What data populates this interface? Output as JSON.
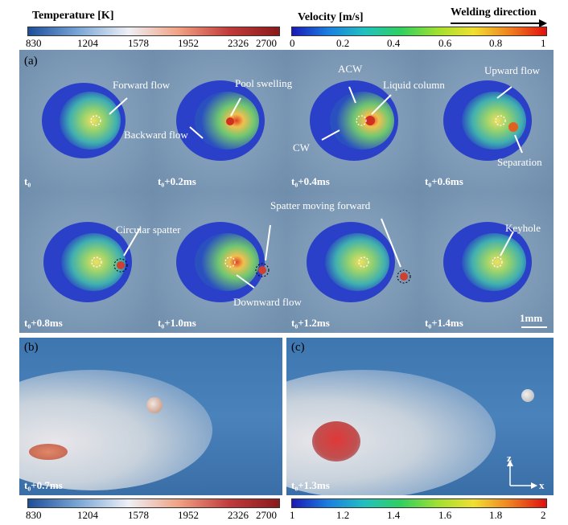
{
  "colorbars": {
    "temperature": {
      "title": "Temperature [K]",
      "ticks": [
        "830",
        "1204",
        "1578",
        "1952",
        "2326",
        "2700"
      ]
    },
    "velocity_top": {
      "title": "Velocity [m/s]",
      "ticks": [
        "0",
        "0.2",
        "0.4",
        "0.6",
        "0.8",
        "1"
      ]
    },
    "temperature_bottom": {
      "ticks": [
        "830",
        "1204",
        "1578",
        "1952",
        "2326",
        "2700"
      ]
    },
    "velocity_bottom": {
      "ticks": [
        "1",
        "1.2",
        "1.4",
        "1.6",
        "1.8",
        "2"
      ]
    }
  },
  "welding_direction": "Welding direction",
  "panel_a": {
    "label": "(a)",
    "times": [
      "t₀",
      "t₀+0.2ms",
      "t₀+0.4ms",
      "t₀+0.6ms",
      "t₀+0.8ms",
      "t₀+1.0ms",
      "t₀+1.2ms",
      "t₀+1.4ms"
    ],
    "annotations": {
      "forward_flow": "Forward flow",
      "pool_swelling": "Pool swelling",
      "backward_flow": "Backward flow",
      "acw": "ACW",
      "liquid_column": "Liquid column",
      "cw": "CW",
      "upward_flow": "Upward flow",
      "separation": "Separation",
      "circular_spatter": "Circular spatter",
      "spatter_moving_forward": "Spatter moving forward",
      "downward_flow": "Downward flow",
      "keyhole": "Keyhole"
    },
    "scale": "1mm"
  },
  "panel_b": {
    "label": "(b)",
    "time": "t₀+0.7ms"
  },
  "panel_c": {
    "label": "(c)",
    "time": "t₀+1.3ms",
    "axis_z": "z",
    "axis_x": "x"
  }
}
